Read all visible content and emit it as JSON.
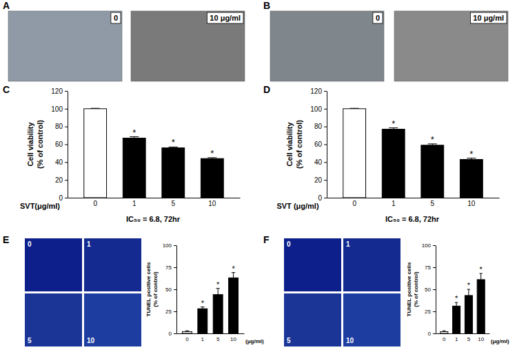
{
  "figure": {
    "panel_labels": [
      "A",
      "B",
      "C",
      "D",
      "E",
      "F"
    ],
    "images": {
      "A": [
        "0",
        "10 μg/ml"
      ],
      "B": [
        "0",
        "10 μg/ml"
      ],
      "E": [
        "0",
        "1",
        "5",
        "10"
      ],
      "F": [
        "0",
        "1",
        "5",
        "10"
      ]
    }
  },
  "chart_data": [
    {
      "type": "bar",
      "categories": [
        "0",
        "1",
        "5",
        "10"
      ],
      "values": [
        100,
        67,
        56,
        44
      ],
      "errors": [
        0.5,
        1.5,
        1,
        1
      ],
      "colors": [
        "#ffffff",
        "#000000",
        "#000000",
        "#000000"
      ],
      "x_label": "SVT(μg/ml)",
      "y_label": [
        "Cell viability",
        "(% of control)"
      ],
      "ylim": [
        0,
        120
      ],
      "yticks": [
        0,
        20,
        40,
        60,
        80,
        100,
        120
      ],
      "annotations": [
        null,
        "*",
        "*",
        "*"
      ],
      "caption": "IC₅₀ = 6.8, 72hr"
    },
    {
      "type": "bar",
      "categories": [
        "0",
        "1",
        "5",
        "10"
      ],
      "values": [
        100,
        77,
        59,
        43
      ],
      "errors": [
        0.5,
        1.5,
        1.5,
        1.5
      ],
      "colors": [
        "#ffffff",
        "#000000",
        "#000000",
        "#000000"
      ],
      "x_label": "SVT (μg/ml)",
      "y_label": [
        "Cell viability",
        "(% of control)"
      ],
      "ylim": [
        0,
        120
      ],
      "yticks": [
        0,
        20,
        40,
        60,
        80,
        100,
        120
      ],
      "annotations": [
        null,
        "*",
        "*",
        "*"
      ],
      "caption": "IC₅₀ = 6.8, 72hr"
    },
    {
      "type": "bar",
      "categories": [
        "0",
        "1",
        "5",
        "10"
      ],
      "values": [
        2,
        28,
        44,
        63
      ],
      "errors": [
        1,
        2,
        7,
        6
      ],
      "colors": [
        "#ffffff",
        "#000000",
        "#000000",
        "#000000"
      ],
      "x_label": "(μg/ml)",
      "y_label": [
        "TUNEL positive cells",
        "(% of control)"
      ],
      "ylim": [
        0,
        100
      ],
      "yticks": [
        0,
        25,
        50,
        75,
        100
      ],
      "annotations": [
        null,
        "*",
        "*",
        "*"
      ]
    },
    {
      "type": "bar",
      "categories": [
        "0",
        "1",
        "5",
        "10"
      ],
      "values": [
        2,
        31,
        43,
        61
      ],
      "errors": [
        1,
        4,
        7,
        7
      ],
      "colors": [
        "#ffffff",
        "#000000",
        "#000000",
        "#000000"
      ],
      "x_label": "(μg/ml)",
      "y_label": [
        "TUNEL positive cells",
        "(% of control)"
      ],
      "ylim": [
        0,
        100
      ],
      "yticks": [
        0,
        25,
        50,
        75,
        100
      ],
      "annotations": [
        null,
        "*",
        "*",
        "*"
      ]
    }
  ]
}
